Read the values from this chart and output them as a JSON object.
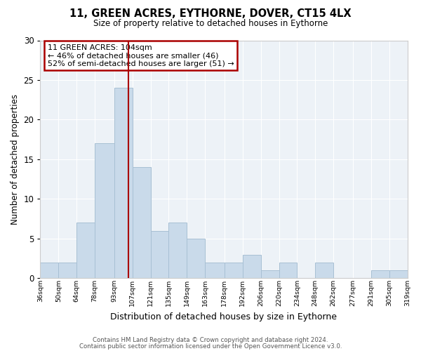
{
  "title": "11, GREEN ACRES, EYTHORNE, DOVER, CT15 4LX",
  "subtitle": "Size of property relative to detached houses in Eythorne",
  "xlabel": "Distribution of detached houses by size in Eythorne",
  "ylabel": "Number of detached properties",
  "bar_color": "#c9daea",
  "bar_edgecolor": "#a8c0d4",
  "background_color": "#edf2f7",
  "grid_color": "#ffffff",
  "annotation_box_edgecolor": "#aa0000",
  "vline_color": "#aa0000",
  "vline_x": 104,
  "annotation_title": "11 GREEN ACRES: 104sqm",
  "annotation_line1": "← 46% of detached houses are smaller (46)",
  "annotation_line2": "52% of semi-detached houses are larger (51) →",
  "bins": [
    36,
    50,
    64,
    78,
    93,
    107,
    121,
    135,
    149,
    163,
    178,
    192,
    206,
    220,
    234,
    248,
    262,
    277,
    291,
    305,
    319
  ],
  "counts": [
    2,
    2,
    7,
    17,
    24,
    14,
    6,
    7,
    5,
    2,
    2,
    3,
    1,
    2,
    0,
    2,
    0,
    0,
    1,
    1
  ],
  "ylim": [
    0,
    30
  ],
  "yticks": [
    0,
    5,
    10,
    15,
    20,
    25,
    30
  ],
  "footer1": "Contains HM Land Registry data © Crown copyright and database right 2024.",
  "footer2": "Contains public sector information licensed under the Open Government Licence v3.0."
}
